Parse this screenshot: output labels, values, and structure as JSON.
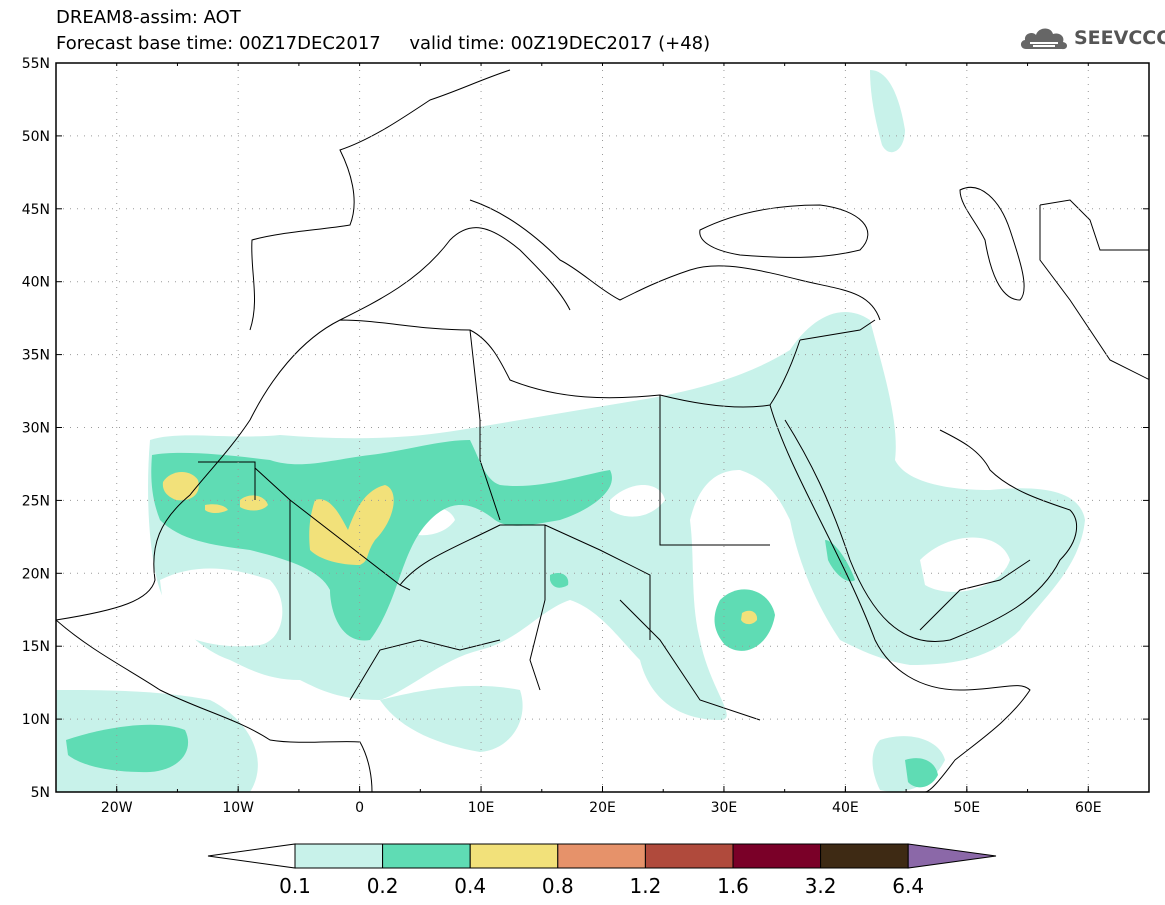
{
  "header": {
    "title_line1": "DREAM8-assim: AOT",
    "title_line2": "Forecast base time: 00Z17DEC2017     valid time: 00Z19DEC2017 (+48)"
  },
  "logo": {
    "text": "SEEVCCC",
    "icon": "cloud-icon"
  },
  "map": {
    "lon_range": [
      -25,
      65
    ],
    "lat_range": [
      5,
      55
    ],
    "lon_ticks": [
      {
        "value": -20,
        "label": "20W"
      },
      {
        "value": -10,
        "label": "10W"
      },
      {
        "value": 0,
        "label": "0"
      },
      {
        "value": 10,
        "label": "10E"
      },
      {
        "value": 20,
        "label": "20E"
      },
      {
        "value": 30,
        "label": "30E"
      },
      {
        "value": 40,
        "label": "40E"
      },
      {
        "value": 50,
        "label": "50E"
      },
      {
        "value": 60,
        "label": "60E"
      }
    ],
    "lat_ticks": [
      {
        "value": 55,
        "label": "55N"
      },
      {
        "value": 50,
        "label": "50N"
      },
      {
        "value": 45,
        "label": "45N"
      },
      {
        "value": 40,
        "label": "40N"
      },
      {
        "value": 35,
        "label": "35N"
      },
      {
        "value": 30,
        "label": "30N"
      },
      {
        "value": 25,
        "label": "25N"
      },
      {
        "value": 20,
        "label": "20N"
      },
      {
        "value": 15,
        "label": "15N"
      },
      {
        "value": 10,
        "label": "10N"
      },
      {
        "value": 5,
        "label": "5N"
      }
    ],
    "grid": true
  },
  "colorbar": {
    "levels": [
      "0.1",
      "0.2",
      "0.4",
      "0.8",
      "1.2",
      "1.6",
      "3.2",
      "6.4"
    ],
    "colors": [
      "#ffffff",
      "#c8f2ea",
      "#5fdcb4",
      "#f2e17a",
      "#e6926a",
      "#b04a3c",
      "#7a0028",
      "#3e2a14",
      "#8b68a8"
    ]
  }
}
